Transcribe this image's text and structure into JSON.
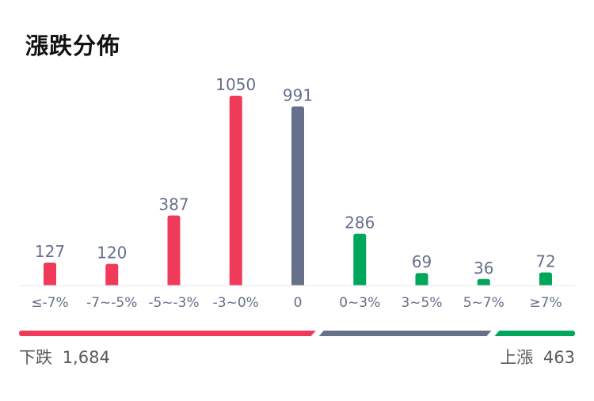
{
  "header": {
    "title": "漲跌分佈"
  },
  "chart_data": {
    "type": "bar",
    "title": "漲跌分佈",
    "categories": [
      "≤-7%",
      "-7~-5%",
      "-5~-3%",
      "-3~0%",
      "0",
      "0~3%",
      "3~5%",
      "5~7%",
      "≥7%"
    ],
    "values": [
      127,
      120,
      387,
      1050,
      991,
      286,
      69,
      36,
      72
    ],
    "data_labels": [
      "127",
      "120",
      "387",
      "1050",
      "991",
      "286",
      "69",
      "36",
      "72"
    ],
    "bar_colors": [
      "#f03a5a",
      "#f03a5a",
      "#f03a5a",
      "#f03a5a",
      "#66708a",
      "#00a65a",
      "#00a65a",
      "#00a65a",
      "#00a65a"
    ],
    "ylim": [
      0,
      1050
    ],
    "grid": false,
    "legend": "none"
  },
  "summary": {
    "down_label": "下跌",
    "down_value": "1,684",
    "up_label": "上漲",
    "up_value": "463",
    "colors": {
      "down": "#f03a5a",
      "flat": "#66708a",
      "up": "#00a65a"
    }
  }
}
